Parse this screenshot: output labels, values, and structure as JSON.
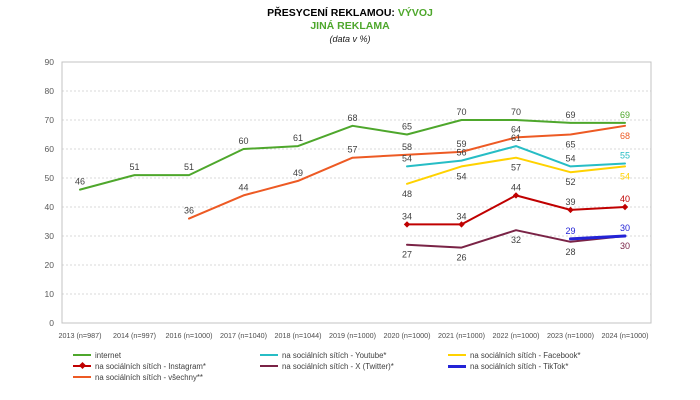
{
  "header": {
    "title_prefix": "PŘESYCENÍ REKLAMOU:",
    "title_highlight": "VÝVOJ",
    "subtitle": "JINÁ REKLAMA",
    "note": "(data v %)",
    "highlight_color": "#4EA72C"
  },
  "chart_data": {
    "type": "line",
    "title": "PŘESYCENÍ REKLAMOU: VÝVOJ",
    "subtitle": "JINÁ REKLAMA",
    "note": "(data v %)",
    "ylim": [
      0,
      90
    ],
    "ytick_step": 10,
    "grid": "horizontal-dashed",
    "legend_position": "bottom",
    "axis_color": "#c3c3c3",
    "grid_color": "#d8d8d8",
    "tick_label_color": "#595959",
    "data_label_color": "#404040",
    "categories": [
      "2013 (n=987)",
      "2014 (n=997)",
      "2016 (n=1000)",
      "2017 (n=1040)",
      "2018 (n=1044)",
      "2019 (n=1000)",
      "2020 (n=1000)",
      "2021 (n=1000)",
      "2022 (n=1000)",
      "2023 (n=1000)",
      "2024 (n=1000)"
    ],
    "series": [
      {
        "name": "internet",
        "color": "#4EA72C",
        "start_index": 0,
        "width": 2,
        "marker": "none",
        "label_color_mode": "last",
        "values": [
          46,
          51,
          51,
          60,
          61,
          68,
          65,
          70,
          70,
          69,
          69
        ],
        "label_pos": [
          "a",
          "a",
          "a",
          "a",
          "a",
          "a",
          "a",
          "a",
          "a",
          "a",
          "a"
        ]
      },
      {
        "name": "na sociálních sítích - všechny**",
        "color": "#ED5A24",
        "start_index": 2,
        "width": 2,
        "marker": "none",
        "label_color_mode": "last",
        "values": [
          36,
          44,
          49,
          57,
          58,
          59,
          64,
          65,
          68
        ],
        "label_pos": [
          "a",
          "a",
          "a",
          "a",
          "a",
          "a",
          "a",
          "b",
          "b"
        ]
      },
      {
        "name": "na sociálních sítích - Facebook*",
        "color": "#FFD200",
        "start_index": 6,
        "width": 2,
        "marker": "none",
        "label_color_mode": "last",
        "values": [
          48,
          54,
          57,
          52,
          54
        ],
        "label_pos": [
          "b",
          "b",
          "b",
          "b",
          "b"
        ]
      },
      {
        "name": "na sociálních sítích - Youtube*",
        "color": "#27BDC5",
        "start_index": 6,
        "width": 2,
        "marker": "none",
        "label_color_mode": "last",
        "values": [
          54,
          56,
          61,
          54,
          55
        ],
        "label_pos": [
          "a",
          "a",
          "a",
          "a",
          "a"
        ]
      },
      {
        "name": "na sociálních sítích - X (Twitter)*",
        "color": "#7A2346",
        "start_index": 6,
        "width": 2,
        "marker": "none",
        "label_color_mode": "last",
        "values": [
          27,
          26,
          32,
          28,
          30
        ],
        "label_pos": [
          "b",
          "b",
          "b",
          "b",
          "b"
        ]
      },
      {
        "name": "na sociálních sítích - Instagram*",
        "color": "#C00000",
        "start_index": 6,
        "width": 2,
        "marker": "diamond",
        "label_color_mode": "last",
        "values": [
          34,
          34,
          44,
          39,
          40
        ],
        "label_pos": [
          "a",
          "a",
          "a",
          "a",
          "a"
        ]
      },
      {
        "name": "na sociálních sítích - TikTok*",
        "color": "#2323D6",
        "start_index": 9,
        "width": 3,
        "marker": "none",
        "label_color_mode": "all",
        "values": [
          29,
          30
        ],
        "label_pos": [
          "a",
          "a"
        ]
      }
    ]
  },
  "legend": {
    "items": [
      {
        "label": "internet",
        "color": "#4EA72C",
        "marker": "line"
      },
      {
        "label": "na sociálních sítích - Youtube*",
        "color": "#27BDC5",
        "marker": "line"
      },
      {
        "label": "na sociálních sítích - Facebook*",
        "color": "#FFD200",
        "marker": "line"
      },
      {
        "label": "na sociálních sítích - Instagram*",
        "color": "#C00000",
        "marker": "line-diamond"
      },
      {
        "label": "na sociálních sítích - X (Twitter)*",
        "color": "#7A2346",
        "marker": "line"
      },
      {
        "label": "na sociálních sítích - TikTok*",
        "color": "#2323D6",
        "marker": "line-thick"
      },
      {
        "label": "na sociálních sítích - všechny**",
        "color": "#ED5A24",
        "marker": "line"
      }
    ]
  }
}
